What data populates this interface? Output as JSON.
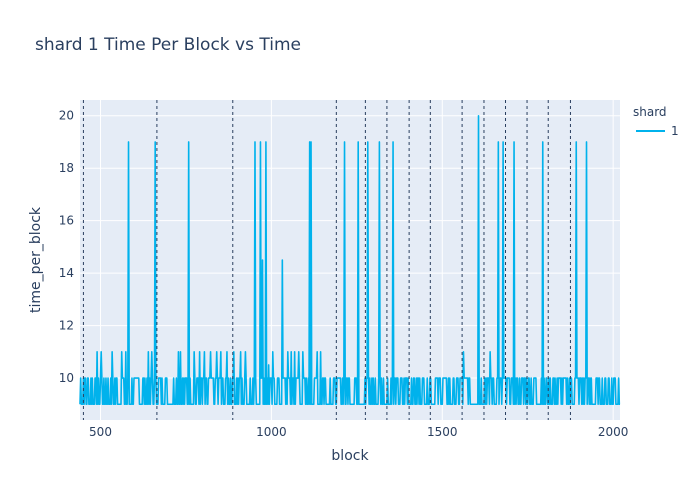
{
  "chart_data": {
    "type": "line",
    "title": "shard 1 Time Per Block vs Time",
    "xlabel": "block",
    "ylabel": "time_per_block",
    "xlim": [
      440,
      2020
    ],
    "ylim": [
      8.4,
      20.6
    ],
    "x_ticks": [
      500,
      1000,
      1500,
      2000
    ],
    "x_tick_labels": [
      "500",
      "1000",
      "1500",
      "2000"
    ],
    "y_ticks": [
      10,
      12,
      14,
      16,
      18,
      20
    ],
    "y_tick_labels": [
      "10",
      "12",
      "14",
      "16",
      "18",
      "20"
    ],
    "grid": true,
    "legend": {
      "title": "shard",
      "placement": "right",
      "entries": [
        "1"
      ]
    },
    "colors": {
      "series": "#00b2ec",
      "plot_bg": "#e5ecf6",
      "grid": "#ffffff",
      "vline": "#2a3f5f",
      "text": "#2a3f5f"
    },
    "series": [
      {
        "name": "1",
        "x_start": 440,
        "x_end": 2020,
        "baseline_values": [
          9,
          10
        ],
        "spikes": [
          {
            "x": 490,
            "y": 11
          },
          {
            "x": 502,
            "y": 11
          },
          {
            "x": 535,
            "y": 11
          },
          {
            "x": 562,
            "y": 11
          },
          {
            "x": 575,
            "y": 11
          },
          {
            "x": 583,
            "y": 19
          },
          {
            "x": 640,
            "y": 11
          },
          {
            "x": 650,
            "y": 11
          },
          {
            "x": 660,
            "y": 19
          },
          {
            "x": 728,
            "y": 11
          },
          {
            "x": 735,
            "y": 11
          },
          {
            "x": 758,
            "y": 19
          },
          {
            "x": 775,
            "y": 11
          },
          {
            "x": 790,
            "y": 11
          },
          {
            "x": 805,
            "y": 11
          },
          {
            "x": 822,
            "y": 11
          },
          {
            "x": 840,
            "y": 11
          },
          {
            "x": 852,
            "y": 11
          },
          {
            "x": 870,
            "y": 11
          },
          {
            "x": 890,
            "y": 11
          },
          {
            "x": 910,
            "y": 11
          },
          {
            "x": 925,
            "y": 11
          },
          {
            "x": 952,
            "y": 19
          },
          {
            "x": 968,
            "y": 19
          },
          {
            "x": 975,
            "y": 14.5
          },
          {
            "x": 984,
            "y": 19
          },
          {
            "x": 992,
            "y": 10.5
          },
          {
            "x": 1005,
            "y": 11
          },
          {
            "x": 1033,
            "y": 14.5
          },
          {
            "x": 1048,
            "y": 11
          },
          {
            "x": 1058,
            "y": 11
          },
          {
            "x": 1068,
            "y": 11
          },
          {
            "x": 1080,
            "y": 11
          },
          {
            "x": 1092,
            "y": 11
          },
          {
            "x": 1112,
            "y": 19
          },
          {
            "x": 1117,
            "y": 19
          },
          {
            "x": 1135,
            "y": 11
          },
          {
            "x": 1145,
            "y": 11
          },
          {
            "x": 1215,
            "y": 19
          },
          {
            "x": 1255,
            "y": 19
          },
          {
            "x": 1283,
            "y": 19
          },
          {
            "x": 1316,
            "y": 19
          },
          {
            "x": 1356,
            "y": 19
          },
          {
            "x": 1562,
            "y": 11
          },
          {
            "x": 1607,
            "y": 20
          },
          {
            "x": 1640,
            "y": 11
          },
          {
            "x": 1665,
            "y": 19
          },
          {
            "x": 1678,
            "y": 19
          },
          {
            "x": 1710,
            "y": 19
          },
          {
            "x": 1795,
            "y": 19
          },
          {
            "x": 1893,
            "y": 19
          },
          {
            "x": 1923,
            "y": 19
          }
        ]
      }
    ],
    "vertical_lines_x": [
      450,
      665,
      887,
      1190,
      1275,
      1338,
      1403,
      1465,
      1558,
      1622,
      1685,
      1748,
      1810,
      1875
    ]
  }
}
